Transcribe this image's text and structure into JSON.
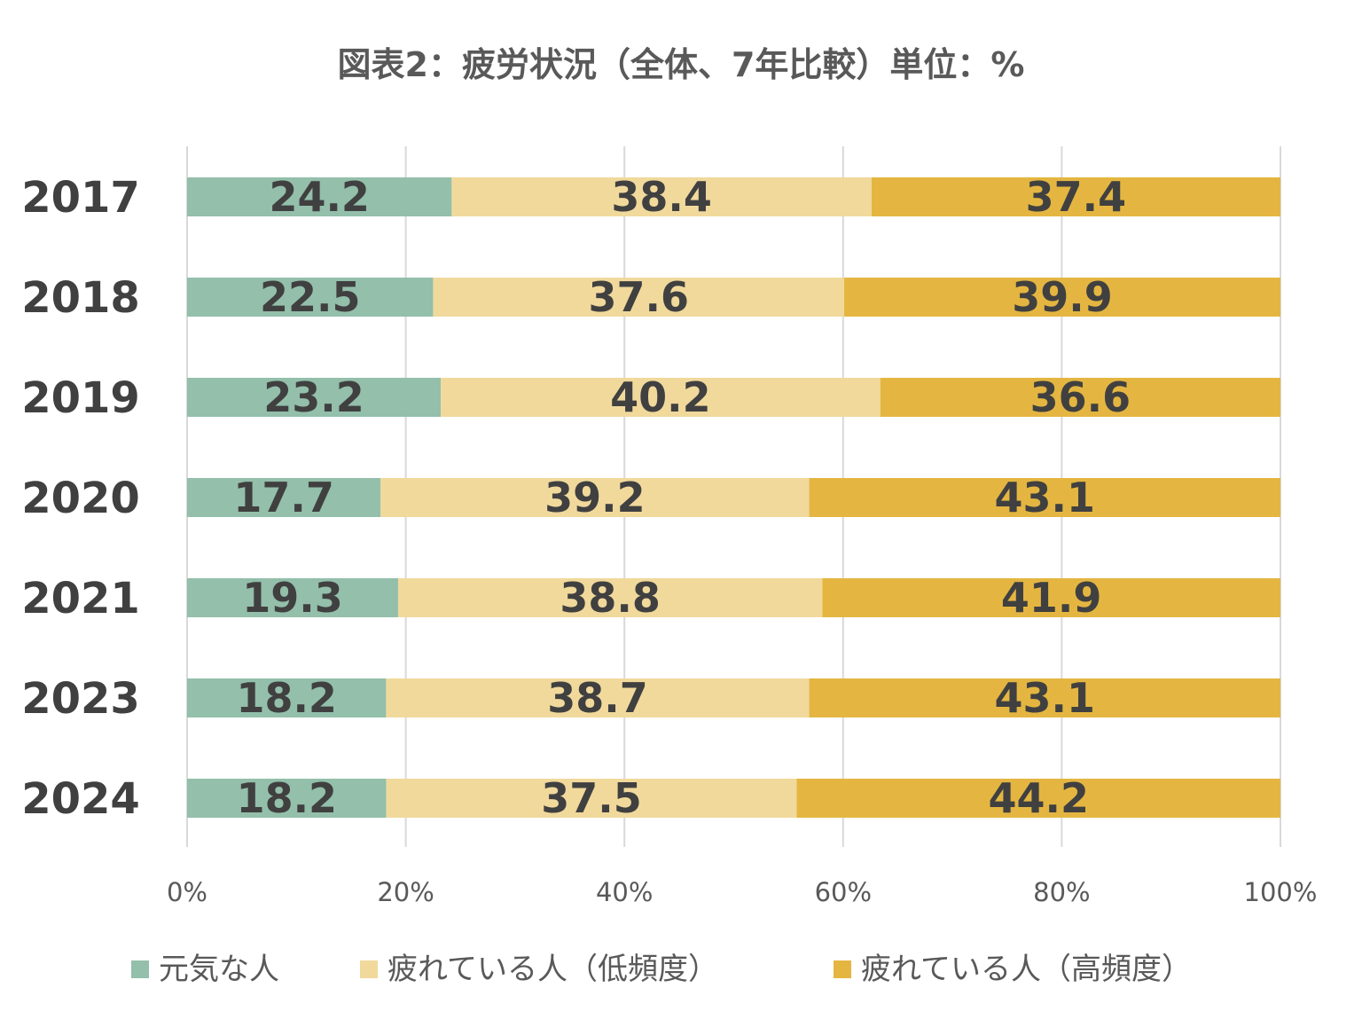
{
  "chart_data": {
    "type": "bar",
    "orientation": "horizontal",
    "stacked": "percent",
    "title": "図表2：疲労状況（全体、7年比較）単位：%",
    "categories": [
      "2017",
      "2018",
      "2019",
      "2020",
      "2021",
      "2023",
      "2024"
    ],
    "series": [
      {
        "name": "元気な人",
        "color": "#93bfab",
        "values": [
          24.2,
          22.5,
          23.2,
          17.7,
          19.3,
          18.2,
          18.2
        ]
      },
      {
        "name": "疲れている人（低頻度）",
        "color": "#f1d99c",
        "values": [
          38.4,
          37.6,
          40.2,
          39.2,
          38.8,
          38.7,
          37.5
        ]
      },
      {
        "name": "疲れている人（高頻度）",
        "color": "#e4b641",
        "values": [
          37.4,
          39.9,
          36.6,
          43.1,
          41.9,
          43.1,
          44.2
        ]
      }
    ],
    "x_ticks": [
      "0%",
      "20%",
      "40%",
      "60%",
      "80%",
      "100%"
    ],
    "xlim": [
      0,
      100
    ],
    "grid": "vertical",
    "legend": "bottom"
  }
}
